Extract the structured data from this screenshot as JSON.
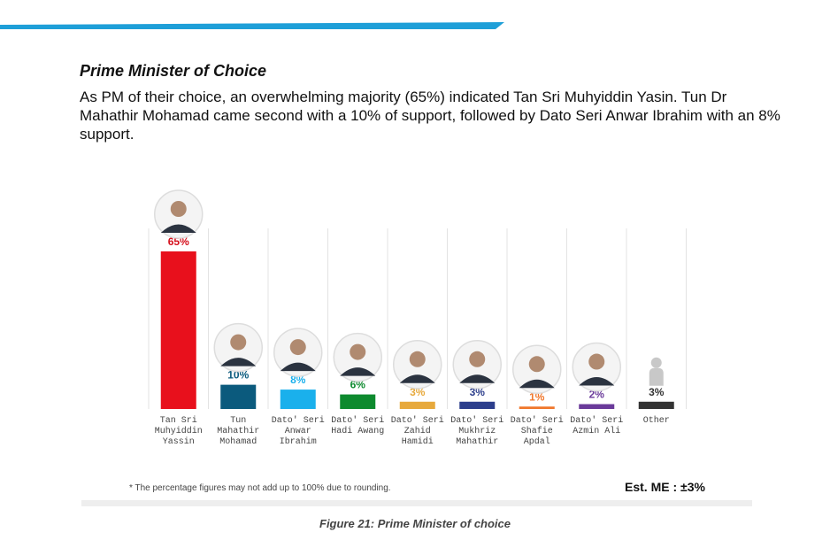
{
  "header": {
    "title": "Prime Minister of Choice",
    "summary": "As PM of their choice, an overwhelming majority (65%) indicated Tan Sri Muhyiddin Yasin. Tun Dr Mahathir Mohamad came second with a 10% of support, followed by Dato Seri Anwar Ibrahim with an 8% support."
  },
  "colors": {
    "band": "#1e9fd8",
    "grid": "#e3e3e3",
    "photo_ring": "#dddddd"
  },
  "chart_data": {
    "type": "bar",
    "categories": [
      [
        "Tan Sri",
        "Muhyiddin",
        "Yassin"
      ],
      [
        "Tun",
        "Mahathir",
        "Mohamad"
      ],
      [
        "Dato' Seri",
        "Anwar",
        "Ibrahim"
      ],
      [
        "Dato' Seri",
        "Hadi Awang"
      ],
      [
        "Dato' Seri",
        "Zahid",
        "Hamidi"
      ],
      [
        "Dato' Seri",
        "Mukhriz",
        "Mahathir"
      ],
      [
        "Dato' Seri",
        "Shafie",
        "Apdal"
      ],
      [
        "Dato' Seri",
        "Azmin Ali"
      ],
      [
        "Other"
      ]
    ],
    "values": [
      65,
      10,
      8,
      6,
      3,
      3,
      1,
      2,
      3
    ],
    "value_labels": [
      "65%",
      "10%",
      "8%",
      "6%",
      "3%",
      "3%",
      "1%",
      "2%",
      "3%"
    ],
    "colors": [
      "#e8101c",
      "#0b5a7d",
      "#1ab0ec",
      "#0d8a2e",
      "#e7a93c",
      "#2c3e8c",
      "#f0772b",
      "#6a3a9a",
      "#333333"
    ],
    "label_colors": [
      "#d5101c",
      "#0b5a7d",
      "#1ab0ec",
      "#0d8a2e",
      "#e7a93c",
      "#2c3e8c",
      "#f0772b",
      "#6a3a9a",
      "#333333"
    ],
    "photo_icons": [
      "portrait-icon",
      "portrait-icon",
      "portrait-icon",
      "portrait-icon",
      "portrait-icon",
      "portrait-icon",
      "portrait-icon",
      "portrait-icon",
      "person-silhouette-icon"
    ],
    "ylim": [
      0,
      65
    ],
    "grid": "vertical separators"
  },
  "footer": {
    "note": "* The percentage figures may not add up to 100% due to rounding.",
    "margin_of_error": "Est. ME : ±3%",
    "caption": "Figure 21: Prime Minister of choice"
  }
}
